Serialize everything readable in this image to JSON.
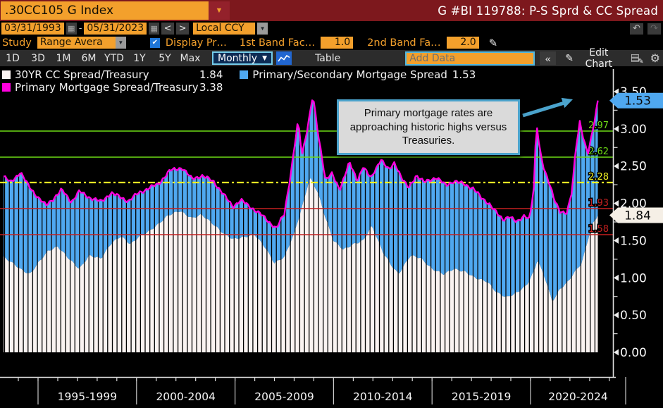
{
  "window": {
    "ticker": ".30CC105 G Index",
    "title": "G #BI 119788: P-S Sprd & CC Spread"
  },
  "icons": {
    "ticker_dropdown": "▼",
    "calendar": "▦",
    "prev": "<",
    "next": ">",
    "select_arrow": "▼",
    "checkbox_check": "✔",
    "pencil": "✎",
    "freq_arrow": "▼",
    "collapse": "«",
    "gear": "⚙",
    "undo": "↶",
    "redo": "↷",
    "panel": "▤"
  },
  "controls": {
    "date_from": "03/31/1993",
    "date_to": "05/31/2023",
    "date_separator": "-",
    "currency": "Local CCY",
    "study_label": "Study",
    "study_value": "Range Avera",
    "display_label": "Display Pr…",
    "band1_label": "1st Band Fac…",
    "band1_value": "1.0",
    "band2_label": "2nd Band Fa…",
    "band2_value": "2.0"
  },
  "toolbar": {
    "ranges": [
      "1D",
      "3D",
      "1M",
      "6M",
      "YTD",
      "1Y",
      "5Y",
      "Max"
    ],
    "frequency": "Monthly",
    "table_label": "Table",
    "add_data_placeholder": "Add Data",
    "edit_chart_label": "Edit Chart"
  },
  "legend": [
    {
      "label": "30YR CC Spread/Treasury",
      "value": "1.84",
      "color": "#FAF3F1"
    },
    {
      "label": "Primary/Secondary Mortgage Spread",
      "value": "1.53",
      "color": "#4FA8F0"
    },
    {
      "label": "Primary Mortgage Spread/Treasury",
      "value": "3.38",
      "color": "#FF00DE"
    }
  ],
  "annotation": {
    "text": "Primary mortgage rates are approaching historic highs versus Treasuries."
  },
  "bands": [
    {
      "label": "2.97",
      "value": 2.97,
      "color": "#6EDC16",
      "style": "solid"
    },
    {
      "label": "2.62",
      "value": 2.62,
      "color": "#6EDC16",
      "style": "solid"
    },
    {
      "label": "2.28",
      "value": 2.28,
      "color": "#F2F224",
      "style": "dashdot"
    },
    {
      "label": "1.93",
      "value": 1.93,
      "color": "#C42020",
      "style": "solid"
    },
    {
      "label": "1.58",
      "value": 1.58,
      "color": "#C42020",
      "style": "solid"
    }
  ],
  "axis": {
    "y_ticks": [
      {
        "label": "3.50",
        "value": 3.5
      },
      {
        "label": "3.00",
        "value": 3.0
      },
      {
        "label": "2.50",
        "value": 2.5
      },
      {
        "label": "2.00",
        "value": 2.0
      },
      {
        "label": "1.50",
        "value": 1.5
      },
      {
        "label": "1.00",
        "value": 1.0
      },
      {
        "label": "0.50",
        "value": 0.5
      },
      {
        "label": "0.00",
        "value": 0.0
      }
    ],
    "x_periods": [
      "1995-1999",
      "2000-2004",
      "2005-2009",
      "2010-2014",
      "2015-2019",
      "2020-2024"
    ],
    "price_tags": [
      {
        "value": "1.53",
        "at": 3.38,
        "color": "#4FA8F0"
      },
      {
        "value": "1.84",
        "at": 1.84,
        "color": "#F5EFE6"
      }
    ]
  },
  "chart_data": {
    "type": "combo_stacked_bar_line",
    "title": "P-S Sprd & CC Spread",
    "x_unit": "monthly, 1993-03 to 2023-05",
    "x_range": [
      1993.25,
      2023.4167
    ],
    "ylim": [
      0,
      3.5
    ],
    "grid": false,
    "legend_position": "top",
    "band_lines": [
      2.97,
      2.62,
      2.28,
      1.93,
      1.58
    ],
    "series": [
      {
        "name": "30YR CC Spread/Treasury",
        "type": "bar",
        "color": "#FAF3F1",
        "last_value": 1.84,
        "anchors": [
          [
            1993.25,
            1.28
          ],
          [
            1993.7,
            1.2
          ],
          [
            1994.2,
            1.1
          ],
          [
            1994.6,
            1.05
          ],
          [
            1995.0,
            1.2
          ],
          [
            1995.5,
            1.36
          ],
          [
            1996.0,
            1.42
          ],
          [
            1996.6,
            1.25
          ],
          [
            1997.1,
            1.12
          ],
          [
            1997.6,
            1.3
          ],
          [
            1998.2,
            1.26
          ],
          [
            1998.7,
            1.46
          ],
          [
            1999.2,
            1.56
          ],
          [
            1999.7,
            1.45
          ],
          [
            2000.1,
            1.55
          ],
          [
            2000.6,
            1.62
          ],
          [
            2001.1,
            1.72
          ],
          [
            2001.6,
            1.84
          ],
          [
            2002.2,
            1.9
          ],
          [
            2002.8,
            1.8
          ],
          [
            2003.3,
            1.85
          ],
          [
            2003.9,
            1.72
          ],
          [
            2004.4,
            1.6
          ],
          [
            2004.9,
            1.52
          ],
          [
            2005.5,
            1.55
          ],
          [
            2006.0,
            1.58
          ],
          [
            2006.5,
            1.42
          ],
          [
            2007.0,
            1.2
          ],
          [
            2007.5,
            1.28
          ],
          [
            2008.0,
            1.6
          ],
          [
            2008.4,
            1.95
          ],
          [
            2008.8,
            2.35
          ],
          [
            2009.2,
            2.15
          ],
          [
            2009.6,
            1.8
          ],
          [
            2010.0,
            1.5
          ],
          [
            2010.5,
            1.38
          ],
          [
            2011.0,
            1.45
          ],
          [
            2011.5,
            1.5
          ],
          [
            2011.95,
            1.7
          ],
          [
            2012.5,
            1.35
          ],
          [
            2012.9,
            1.18
          ],
          [
            2013.3,
            1.05
          ],
          [
            2013.9,
            1.3
          ],
          [
            2014.4,
            1.27
          ],
          [
            2015.0,
            1.12
          ],
          [
            2015.6,
            1.05
          ],
          [
            2016.1,
            1.12
          ],
          [
            2016.7,
            1.08
          ],
          [
            2017.2,
            1.0
          ],
          [
            2017.8,
            0.95
          ],
          [
            2018.3,
            0.8
          ],
          [
            2018.8,
            0.74
          ],
          [
            2019.3,
            0.8
          ],
          [
            2019.8,
            0.9
          ],
          [
            2020.2,
            1.1
          ],
          [
            2020.35,
            1.25
          ],
          [
            2020.8,
            0.95
          ],
          [
            2021.1,
            0.68
          ],
          [
            2021.5,
            0.85
          ],
          [
            2021.9,
            0.95
          ],
          [
            2022.3,
            1.1
          ],
          [
            2022.6,
            1.2
          ],
          [
            2022.9,
            1.5
          ],
          [
            2023.1,
            1.7
          ],
          [
            2023.4167,
            1.84
          ]
        ]
      },
      {
        "name": "Primary/Secondary Mortgage Spread",
        "type": "bar_stacked_above",
        "color": "#4FA8F0",
        "last_value": 1.53,
        "derivation": "primary_total minus cc_spread"
      },
      {
        "name": "Primary Mortgage Spread/Treasury",
        "type": "line",
        "color": "#FF00DE",
        "last_value": 3.38,
        "anchors": [
          [
            1993.25,
            2.36
          ],
          [
            1993.6,
            2.28
          ],
          [
            1994.1,
            2.42
          ],
          [
            1994.5,
            2.24
          ],
          [
            1995.0,
            2.08
          ],
          [
            1995.4,
            1.97
          ],
          [
            1995.8,
            2.07
          ],
          [
            1996.2,
            2.18
          ],
          [
            1996.7,
            2.02
          ],
          [
            1997.1,
            2.16
          ],
          [
            1997.6,
            2.08
          ],
          [
            1998.2,
            2.02
          ],
          [
            1998.7,
            2.14
          ],
          [
            1999.2,
            2.08
          ],
          [
            1999.6,
            2.03
          ],
          [
            2000.1,
            2.14
          ],
          [
            2000.6,
            2.2
          ],
          [
            2001.1,
            2.26
          ],
          [
            2001.7,
            2.44
          ],
          [
            2002.3,
            2.48
          ],
          [
            2002.8,
            2.33
          ],
          [
            2003.3,
            2.37
          ],
          [
            2003.9,
            2.3
          ],
          [
            2004.4,
            2.12
          ],
          [
            2004.9,
            1.96
          ],
          [
            2005.3,
            2.04
          ],
          [
            2005.9,
            1.93
          ],
          [
            2006.4,
            1.83
          ],
          [
            2006.9,
            1.71
          ],
          [
            2007.1,
            1.66
          ],
          [
            2007.5,
            1.86
          ],
          [
            2007.8,
            2.35
          ],
          [
            2008.2,
            3.1
          ],
          [
            2008.4,
            2.65
          ],
          [
            2008.7,
            3.05
          ],
          [
            2008.95,
            3.45
          ],
          [
            2009.2,
            2.95
          ],
          [
            2009.6,
            2.32
          ],
          [
            2009.9,
            2.4
          ],
          [
            2010.3,
            2.18
          ],
          [
            2010.8,
            2.55
          ],
          [
            2011.2,
            2.3
          ],
          [
            2011.5,
            2.5
          ],
          [
            2011.9,
            2.33
          ],
          [
            2012.4,
            2.6
          ],
          [
            2012.8,
            2.44
          ],
          [
            2013.1,
            2.55
          ],
          [
            2013.5,
            2.32
          ],
          [
            2013.8,
            2.2
          ],
          [
            2014.2,
            2.38
          ],
          [
            2014.6,
            2.28
          ],
          [
            2015.2,
            2.35
          ],
          [
            2015.7,
            2.24
          ],
          [
            2016.1,
            2.3
          ],
          [
            2016.6,
            2.26
          ],
          [
            2017.1,
            2.2
          ],
          [
            2017.5,
            2.07
          ],
          [
            2017.9,
            2.0
          ],
          [
            2018.3,
            1.86
          ],
          [
            2018.6,
            1.78
          ],
          [
            2018.9,
            1.83
          ],
          [
            2019.3,
            1.74
          ],
          [
            2019.7,
            1.85
          ],
          [
            2019.95,
            1.78
          ],
          [
            2020.17,
            2.2
          ],
          [
            2020.3,
            3.1
          ],
          [
            2020.45,
            2.75
          ],
          [
            2020.7,
            2.45
          ],
          [
            2020.9,
            2.3
          ],
          [
            2021.2,
            2.05
          ],
          [
            2021.5,
            1.9
          ],
          [
            2021.85,
            1.86
          ],
          [
            2022.1,
            2.15
          ],
          [
            2022.3,
            2.75
          ],
          [
            2022.5,
            3.1
          ],
          [
            2022.7,
            2.85
          ],
          [
            2022.9,
            2.65
          ],
          [
            2023.1,
            2.9
          ],
          [
            2023.3,
            3.2
          ],
          [
            2023.4167,
            3.38
          ]
        ]
      }
    ]
  }
}
